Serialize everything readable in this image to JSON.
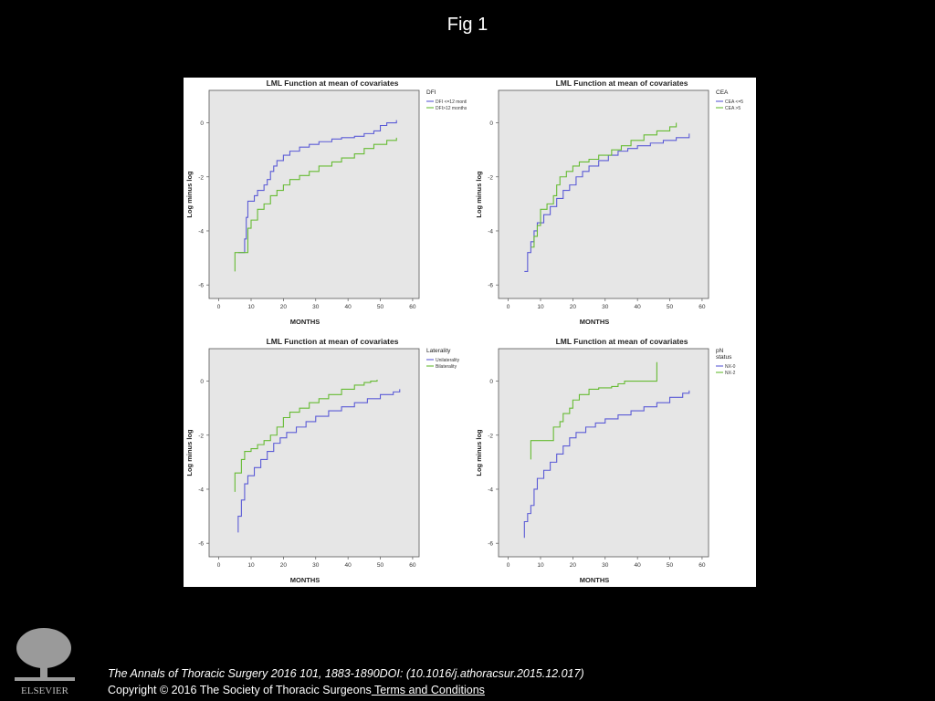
{
  "page": {
    "title": "Fig 1"
  },
  "footer": {
    "citation": "The Annals of Thoracic Surgery 2016 101, 1883-1890DOI: (10.1016/j.athoracsur.2015.12.017)",
    "copyright": "Copyright © 2016 The Society of Thoracic Surgeons",
    "terms_link": " Terms and Conditions",
    "publisher": "ELSEVIER"
  },
  "colors": {
    "series_a": "#5b5bd6",
    "series_b": "#66bb33",
    "plot_bg": "#e6e6e6"
  },
  "chart_data": [
    {
      "type": "line",
      "title": "LML Function at mean of covariates",
      "xlabel": "MONTHS",
      "ylabel": "Log minus log",
      "xlim": [
        -3,
        62
      ],
      "ylim": [
        -6.5,
        1.2
      ],
      "xticks": [
        "0",
        "10",
        "20",
        "30",
        "40",
        "50",
        "60"
      ],
      "yticks": [
        "0",
        "-2",
        "-4",
        "-6"
      ],
      "legend_title": "DFI",
      "series": [
        {
          "name": "DFI <=12 months",
          "points": [
            [
              6,
              -4.8
            ],
            [
              8,
              -4.3
            ],
            [
              8.5,
              -3.5
            ],
            [
              9,
              -2.9
            ],
            [
              10,
              -2.9
            ],
            [
              11,
              -2.7
            ],
            [
              12,
              -2.5
            ],
            [
              14,
              -2.3
            ],
            [
              15,
              -2.1
            ],
            [
              16,
              -1.8
            ],
            [
              17,
              -1.6
            ],
            [
              18,
              -1.4
            ],
            [
              20,
              -1.2
            ],
            [
              22,
              -1.05
            ],
            [
              25,
              -0.9
            ],
            [
              28,
              -0.8
            ],
            [
              31,
              -0.7
            ],
            [
              35,
              -0.6
            ],
            [
              38,
              -0.55
            ],
            [
              42,
              -0.5
            ],
            [
              45,
              -0.4
            ],
            [
              48,
              -0.3
            ],
            [
              50,
              -0.1
            ],
            [
              52,
              0.0
            ],
            [
              55,
              0.1
            ]
          ]
        },
        {
          "name": "DFI>12 months",
          "points": [
            [
              5,
              -5.5
            ],
            [
              5,
              -4.8
            ],
            [
              8,
              -4.8
            ],
            [
              9,
              -3.9
            ],
            [
              10,
              -3.6
            ],
            [
              12,
              -3.2
            ],
            [
              14,
              -3.0
            ],
            [
              16,
              -2.7
            ],
            [
              18,
              -2.5
            ],
            [
              20,
              -2.3
            ],
            [
              22,
              -2.1
            ],
            [
              25,
              -1.95
            ],
            [
              28,
              -1.8
            ],
            [
              31,
              -1.6
            ],
            [
              35,
              -1.45
            ],
            [
              38,
              -1.3
            ],
            [
              42,
              -1.15
            ],
            [
              45,
              -0.95
            ],
            [
              48,
              -0.8
            ],
            [
              52,
              -0.65
            ],
            [
              55,
              -0.55
            ]
          ]
        }
      ]
    },
    {
      "type": "line",
      "title": "LML Function at mean of covariates",
      "xlabel": "MONTHS",
      "ylabel": "Log minus log",
      "xlim": [
        -3,
        62
      ],
      "ylim": [
        -6.5,
        1.2
      ],
      "xticks": [
        "0",
        "10",
        "20",
        "30",
        "40",
        "50",
        "60"
      ],
      "yticks": [
        "0",
        "-2",
        "-4",
        "-6"
      ],
      "legend_title": "CEA",
      "series": [
        {
          "name": "CEA <=5",
          "points": [
            [
              5,
              -5.5
            ],
            [
              6,
              -4.8
            ],
            [
              7,
              -4.4
            ],
            [
              8,
              -4.0
            ],
            [
              9,
              -3.7
            ],
            [
              11,
              -3.4
            ],
            [
              13,
              -3.1
            ],
            [
              15,
              -2.8
            ],
            [
              17,
              -2.5
            ],
            [
              19,
              -2.3
            ],
            [
              21,
              -2.0
            ],
            [
              23,
              -1.8
            ],
            [
              25,
              -1.6
            ],
            [
              28,
              -1.4
            ],
            [
              31,
              -1.2
            ],
            [
              34,
              -1.05
            ],
            [
              37,
              -0.95
            ],
            [
              40,
              -0.85
            ],
            [
              44,
              -0.75
            ],
            [
              48,
              -0.65
            ],
            [
              52,
              -0.55
            ],
            [
              56,
              -0.4
            ]
          ]
        },
        {
          "name": "CEA >5",
          "points": [
            [
              7,
              -4.6
            ],
            [
              8,
              -4.2
            ],
            [
              9,
              -3.8
            ],
            [
              10,
              -3.2
            ],
            [
              12,
              -3.0
            ],
            [
              14,
              -2.7
            ],
            [
              15,
              -2.3
            ],
            [
              16,
              -2.0
            ],
            [
              18,
              -1.8
            ],
            [
              20,
              -1.6
            ],
            [
              22,
              -1.45
            ],
            [
              25,
              -1.35
            ],
            [
              28,
              -1.2
            ],
            [
              32,
              -1.0
            ],
            [
              35,
              -0.85
            ],
            [
              38,
              -0.65
            ],
            [
              42,
              -0.45
            ],
            [
              46,
              -0.3
            ],
            [
              50,
              -0.15
            ],
            [
              52,
              0.0
            ]
          ]
        }
      ]
    },
    {
      "type": "line",
      "title": "LML Function at mean of covariates",
      "xlabel": "MONTHS",
      "ylabel": "Log minus log",
      "xlim": [
        -3,
        62
      ],
      "ylim": [
        -6.5,
        1.2
      ],
      "xticks": [
        "0",
        "10",
        "20",
        "30",
        "40",
        "50",
        "60"
      ],
      "yticks": [
        "0",
        "-2",
        "-4",
        "-6"
      ],
      "legend_title": "Laterality",
      "series": [
        {
          "name": "Unilaterality",
          "points": [
            [
              6,
              -5.6
            ],
            [
              6,
              -5.0
            ],
            [
              7,
              -4.4
            ],
            [
              8,
              -3.8
            ],
            [
              9,
              -3.5
            ],
            [
              11,
              -3.2
            ],
            [
              13,
              -2.9
            ],
            [
              15,
              -2.6
            ],
            [
              17,
              -2.3
            ],
            [
              19,
              -2.1
            ],
            [
              21,
              -1.9
            ],
            [
              24,
              -1.7
            ],
            [
              27,
              -1.5
            ],
            [
              30,
              -1.3
            ],
            [
              34,
              -1.1
            ],
            [
              38,
              -0.95
            ],
            [
              42,
              -0.8
            ],
            [
              46,
              -0.65
            ],
            [
              50,
              -0.5
            ],
            [
              54,
              -0.4
            ],
            [
              56,
              -0.3
            ]
          ]
        },
        {
          "name": "Bilaterality",
          "points": [
            [
              5,
              -4.1
            ],
            [
              5,
              -3.4
            ],
            [
              7,
              -3.4
            ],
            [
              7,
              -2.9
            ],
            [
              8,
              -2.6
            ],
            [
              10,
              -2.5
            ],
            [
              12,
              -2.35
            ],
            [
              14,
              -2.2
            ],
            [
              16,
              -2.0
            ],
            [
              18,
              -1.7
            ],
            [
              20,
              -1.35
            ],
            [
              22,
              -1.15
            ],
            [
              25,
              -1.0
            ],
            [
              28,
              -0.8
            ],
            [
              31,
              -0.65
            ],
            [
              34,
              -0.5
            ],
            [
              38,
              -0.3
            ],
            [
              42,
              -0.15
            ],
            [
              45,
              -0.05
            ],
            [
              47,
              0.0
            ],
            [
              49,
              0.05
            ]
          ]
        }
      ]
    },
    {
      "type": "line",
      "title": "LML Function at mean of covariates",
      "xlabel": "MONTHS",
      "ylabel": "Log minus log",
      "xlim": [
        -3,
        62
      ],
      "ylim": [
        -6.5,
        1.2
      ],
      "xticks": [
        "0",
        "10",
        "20",
        "30",
        "40",
        "50",
        "60"
      ],
      "yticks": [
        "0",
        "-2",
        "-4",
        "-6"
      ],
      "legend_title": "pN status",
      "series": [
        {
          "name": "NX-0",
          "points": [
            [
              5,
              -5.8
            ],
            [
              5,
              -5.2
            ],
            [
              6,
              -4.9
            ],
            [
              7,
              -4.6
            ],
            [
              8,
              -4.0
            ],
            [
              9,
              -3.6
            ],
            [
              11,
              -3.3
            ],
            [
              13,
              -3.0
            ],
            [
              15,
              -2.7
            ],
            [
              17,
              -2.4
            ],
            [
              19,
              -2.1
            ],
            [
              21,
              -1.9
            ],
            [
              24,
              -1.7
            ],
            [
              27,
              -1.55
            ],
            [
              30,
              -1.4
            ],
            [
              34,
              -1.25
            ],
            [
              38,
              -1.1
            ],
            [
              42,
              -0.95
            ],
            [
              46,
              -0.8
            ],
            [
              50,
              -0.6
            ],
            [
              54,
              -0.45
            ],
            [
              56,
              -0.35
            ]
          ]
        },
        {
          "name": "NX-2",
          "points": [
            [
              7,
              -2.9
            ],
            [
              7,
              -2.2
            ],
            [
              12,
              -2.2
            ],
            [
              14,
              -1.7
            ],
            [
              16,
              -1.5
            ],
            [
              17,
              -1.2
            ],
            [
              19,
              -1.0
            ],
            [
              20,
              -0.7
            ],
            [
              22,
              -0.5
            ],
            [
              25,
              -0.3
            ],
            [
              28,
              -0.25
            ],
            [
              32,
              -0.2
            ],
            [
              34,
              -0.1
            ],
            [
              36,
              0.0
            ],
            [
              40,
              0.0
            ],
            [
              46,
              0.0
            ],
            [
              46,
              0.7
            ]
          ]
        }
      ]
    }
  ]
}
